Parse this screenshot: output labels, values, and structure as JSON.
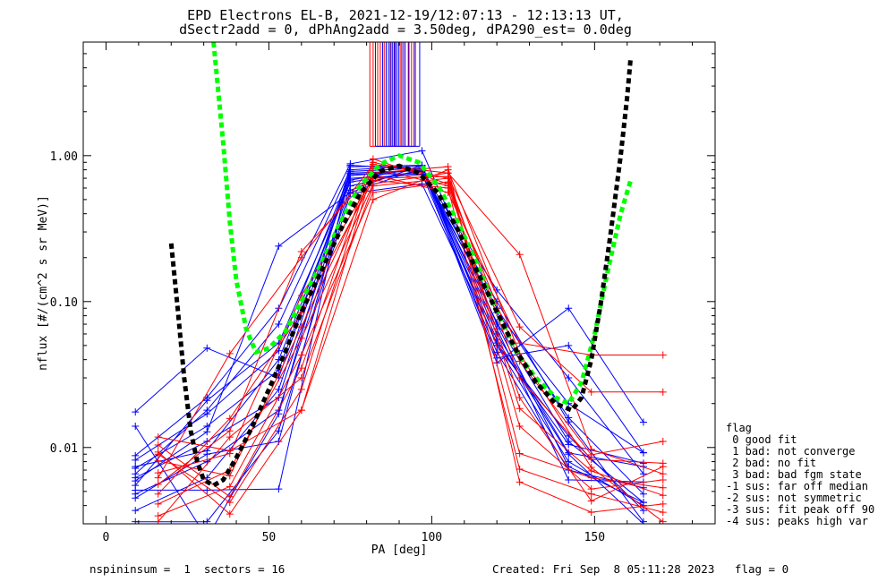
{
  "title_line1": "EPD Electrons EL-B, 2021-12-19/12:07:13 - 12:13:13 UT,",
  "title_line2": "dSectr2add = 0, dPhAng2add = 3.50deg, dPA290_est=    0.0deg",
  "footer_left": "nspininsum =  1  sectors = 16",
  "footer_right": "Created: Fri Sep  8 05:11:28 2023   flag = 0",
  "legend_title": "flag",
  "legend_items": [
    " 0 good fit",
    " 1 bad: not converge",
    " 2 bad: no fit",
    " 3 bad: bad fgm state",
    "-1 sus: far off median",
    "-2 sus: not symmetric",
    "-3 sus: fit peak off 90",
    "-4 sus: peaks high var"
  ],
  "chart_data": {
    "type": "line",
    "xlabel": "PA [deg]",
    "ylabel": "nflux [#/(cm^2 s sr MeV)]",
    "xlim": [
      -7,
      187
    ],
    "ylim": [
      0.003,
      6
    ],
    "yscale": "log",
    "x_ticks": [
      0,
      50,
      100,
      150
    ],
    "x_tick_labels": [
      "0",
      "50",
      "100",
      "150"
    ],
    "y_ticks": [
      0.01,
      0.1,
      1.0
    ],
    "y_tick_labels": [
      "0.01",
      "0.10",
      "1.00"
    ],
    "colors": {
      "blue": "#0000ff",
      "red": "#ff0000",
      "green": "#00ff00",
      "black": "#000000"
    },
    "series": [
      {
        "color": "blue",
        "x": [
          9,
          31,
          53,
          75,
          97,
          120,
          142,
          165
        ],
        "y": [
          0.0045,
          0.009,
          0.011,
          0.73,
          0.8,
          0.055,
          0.009,
          0.003
        ]
      },
      {
        "color": "blue",
        "x": [
          9,
          31,
          53,
          75,
          97,
          120,
          142,
          165
        ],
        "y": [
          0.0051,
          0.0051,
          0.0052,
          0.84,
          0.86,
          0.05,
          0.008,
          0.004
        ]
      },
      {
        "color": "blue",
        "x": [
          9,
          31,
          53,
          75,
          97,
          120,
          142,
          165
        ],
        "y": [
          0.0062,
          0.011,
          0.022,
          0.62,
          0.8,
          0.072,
          0.011,
          0.0042
        ]
      },
      {
        "color": "blue",
        "x": [
          9,
          31,
          53,
          75,
          97,
          120,
          142,
          165
        ],
        "y": [
          0.0072,
          0.014,
          0.034,
          0.7,
          0.74,
          0.09,
          0.016,
          0.0048
        ]
      },
      {
        "color": "blue",
        "x": [
          9,
          31,
          53,
          75,
          97,
          120,
          142,
          165
        ],
        "y": [
          0.0082,
          0.017,
          0.046,
          0.76,
          0.79,
          0.12,
          0.03,
          0.0066
        ]
      },
      {
        "color": "blue",
        "x": [
          9,
          31,
          53,
          75,
          97,
          120,
          142,
          165
        ],
        "y": [
          0.0048,
          0.008,
          0.018,
          0.58,
          0.86,
          0.041,
          0.05,
          0.0092
        ]
      },
      {
        "color": "blue",
        "x": [
          9,
          31,
          53,
          75,
          97,
          120,
          142,
          165
        ],
        "y": [
          0.0055,
          0.021,
          0.052,
          0.68,
          0.83,
          0.06,
          0.0092,
          0.0074
        ]
      },
      {
        "color": "blue",
        "x": [
          9,
          31,
          53,
          75,
          97,
          120,
          142,
          165
        ],
        "y": [
          0.0059,
          0.0128,
          0.24,
          0.56,
          0.82,
          0.038,
          0.09,
          0.0149
        ]
      },
      {
        "color": "blue",
        "x": [
          9,
          31,
          53,
          75,
          97,
          120,
          142,
          165
        ],
        "y": [
          0.0066,
          0.018,
          0.07,
          0.8,
          0.85,
          0.065,
          0.006,
          0.0058
        ]
      },
      {
        "color": "blue",
        "x": [
          9,
          31,
          53,
          75,
          97,
          120,
          142,
          165
        ],
        "y": [
          0.0088,
          0.022,
          0.09,
          0.88,
          1.08,
          0.07,
          0.0074,
          0.0042
        ]
      },
      {
        "color": "blue",
        "x": [
          9,
          31,
          53,
          75,
          97,
          120,
          142,
          165
        ],
        "y": [
          0.0037,
          0.0062,
          0.025,
          0.75,
          0.75,
          0.045,
          0.007,
          0.0053
        ]
      },
      {
        "color": "blue",
        "x": [
          9,
          31,
          53,
          75,
          97,
          120,
          142,
          165
        ],
        "y": [
          0.0175,
          0.048,
          0.03,
          0.78,
          0.82,
          0.05,
          0.012,
          0.0037
        ]
      },
      {
        "color": "blue",
        "x": [
          9,
          31,
          53,
          75,
          97,
          120,
          142,
          165
        ],
        "y": [
          0.014,
          0.0024,
          0.017,
          0.86,
          0.8,
          0.084,
          0.02,
          0.0092
        ]
      },
      {
        "color": "blue",
        "x": [
          9,
          31,
          53,
          75,
          97,
          120,
          142,
          165
        ],
        "y": [
          0.0031,
          0.0031,
          0.013,
          0.55,
          0.64,
          0.052,
          0.0105,
          0.0078
        ]
      },
      {
        "color": "blue",
        "x": [
          9,
          31,
          53,
          75,
          97,
          120,
          142,
          165
        ],
        "y": [
          0.0074,
          0.0095,
          0.04,
          0.66,
          0.78,
          0.1,
          0.015,
          0.0031
        ]
      },
      {
        "color": "red",
        "x": [
          16,
          38,
          60,
          82,
          105,
          127,
          149,
          171
        ],
        "y": [
          0.0093,
          0.0035,
          0.018,
          0.82,
          0.62,
          0.022,
          0.0043,
          0.0074
        ]
      },
      {
        "color": "red",
        "x": [
          16,
          38,
          60,
          82,
          105,
          127,
          149,
          171
        ],
        "y": [
          0.0104,
          0.0046,
          0.035,
          0.95,
          0.64,
          0.039,
          0.0089,
          0.011
        ]
      },
      {
        "color": "red",
        "x": [
          16,
          38,
          60,
          82,
          105,
          127,
          149,
          171
        ],
        "y": [
          0.0081,
          0.0064,
          0.067,
          0.74,
          0.56,
          0.052,
          0.043,
          0.043
        ]
      },
      {
        "color": "red",
        "x": [
          16,
          38,
          60,
          82,
          105,
          127,
          149,
          171
        ],
        "y": [
          0.0067,
          0.0091,
          0.11,
          0.7,
          0.72,
          0.067,
          0.024,
          0.024
        ]
      },
      {
        "color": "red",
        "x": [
          16,
          38,
          60,
          82,
          105,
          127,
          149,
          171
        ],
        "y": [
          0.0062,
          0.044,
          0.2,
          0.87,
          0.76,
          0.21,
          0.0097,
          0.0066
        ]
      },
      {
        "color": "red",
        "x": [
          16,
          38,
          60,
          82,
          105,
          127,
          149,
          171
        ],
        "y": [
          0.0056,
          0.013,
          0.22,
          0.76,
          0.84,
          0.0058,
          0.0036,
          0.0041
        ]
      },
      {
        "color": "red",
        "x": [
          16,
          38,
          60,
          82,
          105,
          127,
          149,
          171
        ],
        "y": [
          0.0048,
          0.0158,
          0.084,
          0.68,
          0.6,
          0.0071,
          0.0048,
          0.0036
        ]
      },
      {
        "color": "red",
        "x": [
          16,
          38,
          60,
          82,
          105,
          127,
          149,
          171
        ],
        "y": [
          0.0041,
          0.007,
          0.056,
          0.64,
          0.76,
          0.0091,
          0.0062,
          0.0053
        ]
      },
      {
        "color": "red",
        "x": [
          16,
          38,
          60,
          82,
          105,
          127,
          149,
          171
        ],
        "y": [
          0.0034,
          0.0054,
          0.043,
          0.56,
          0.66,
          0.0185,
          0.0069,
          0.0047
        ]
      },
      {
        "color": "red",
        "x": [
          16,
          38,
          60,
          82,
          105,
          127,
          149,
          171
        ],
        "y": [
          0.0031,
          0.0118,
          0.03,
          0.62,
          0.7,
          0.03,
          0.0083,
          0.0078
        ]
      },
      {
        "color": "red",
        "x": [
          16,
          38,
          60,
          82,
          105,
          127,
          149,
          171
        ],
        "y": [
          0.0118,
          0.0095,
          0.018,
          0.5,
          0.8,
          0.044,
          0.0073,
          0.0031
        ]
      },
      {
        "color": "red",
        "x": [
          16,
          38,
          60,
          82,
          105,
          127,
          149,
          171
        ],
        "y": [
          0.009,
          0.0042,
          0.025,
          0.9,
          0.7,
          0.014,
          0.0052,
          0.006
        ]
      }
    ],
    "fits": [
      {
        "color": "green",
        "x": [
          33,
          36,
          38,
          40,
          43,
          46,
          50,
          55,
          60,
          66,
          72,
          78,
          84,
          90,
          96,
          102,
          108,
          114,
          120,
          126,
          132,
          138,
          142,
          146,
          150,
          154,
          158,
          161
        ],
        "y": [
          6,
          1.2,
          0.35,
          0.14,
          0.065,
          0.045,
          0.048,
          0.062,
          0.1,
          0.18,
          0.35,
          0.62,
          0.87,
          1.0,
          0.9,
          0.62,
          0.35,
          0.18,
          0.085,
          0.045,
          0.03,
          0.022,
          0.02,
          0.028,
          0.06,
          0.16,
          0.4,
          0.67
        ]
      },
      {
        "color": "black",
        "x": [
          20,
          22,
          24,
          26,
          28,
          30,
          33,
          36,
          40,
          45,
          50,
          55,
          60,
          66,
          72,
          78,
          84,
          90,
          96,
          102,
          108,
          114,
          120,
          126,
          132,
          138,
          143,
          146,
          149,
          152,
          155,
          158,
          160,
          161
        ],
        "y": [
          0.25,
          0.09,
          0.03,
          0.013,
          0.008,
          0.006,
          0.0055,
          0.006,
          0.0085,
          0.014,
          0.025,
          0.045,
          0.085,
          0.16,
          0.31,
          0.55,
          0.78,
          0.85,
          0.76,
          0.55,
          0.31,
          0.16,
          0.085,
          0.046,
          0.028,
          0.02,
          0.018,
          0.022,
          0.04,
          0.1,
          0.3,
          1.0,
          2.5,
          4.5
        ]
      }
    ],
    "vlines": [
      {
        "color": "red",
        "x": [
          81.0,
          82.0,
          83.4,
          84.2,
          85.4,
          87.2,
          88.8,
          90.3,
          91.3,
          92.8,
          93.8,
          95.0
        ]
      },
      {
        "color": "blue",
        "x": [
          82.7,
          84.9,
          86.0,
          86.7,
          87.5,
          88.0,
          88.5,
          89.2,
          89.8,
          90.8,
          91.8,
          93.0,
          94.6,
          96.3
        ]
      }
    ],
    "vline_range": [
      1.16,
      6
    ]
  }
}
